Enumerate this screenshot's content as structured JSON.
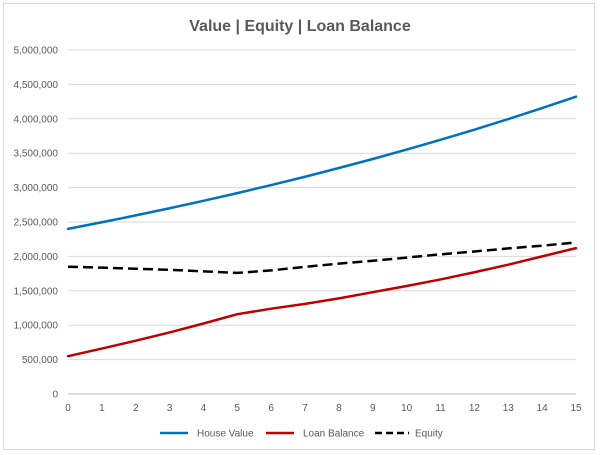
{
  "chart_data": {
    "type": "line",
    "title": "Value | Equity | Loan Balance",
    "xlabel": "",
    "ylabel": "",
    "x": [
      0,
      1,
      2,
      3,
      4,
      5,
      6,
      7,
      8,
      9,
      10,
      11,
      12,
      13,
      14,
      15
    ],
    "x_tick_labels": [
      "0",
      "1",
      "2",
      "3",
      "4",
      "5",
      "6",
      "7",
      "8",
      "9",
      "10",
      "11",
      "12",
      "13",
      "14",
      "15"
    ],
    "ylim": [
      0,
      5000000
    ],
    "y_ticks": [
      0,
      500000,
      1000000,
      1500000,
      2000000,
      2500000,
      3000000,
      3500000,
      4000000,
      4500000,
      5000000
    ],
    "y_tick_labels": [
      "0",
      "500,000",
      "1,000,000",
      "1,500,000",
      "2,000,000",
      "2,500,000",
      "3,000,000",
      "3,500,000",
      "4,000,000",
      "4,500,000",
      "5,000,000"
    ],
    "grid": true,
    "legend_position": "bottom",
    "series": [
      {
        "name": "House Value",
        "color": "#0070c0",
        "style": "solid",
        "values": [
          2400000,
          2496000,
          2596000,
          2700000,
          2808000,
          2920000,
          3037000,
          3158000,
          3285000,
          3416000,
          3553000,
          3695000,
          3842000,
          3996000,
          4156000,
          4322000
        ]
      },
      {
        "name": "Loan Balance",
        "color": "#c00000",
        "style": "solid",
        "values": [
          550000,
          660000,
          775000,
          895000,
          1025000,
          1160000,
          1240000,
          1310000,
          1390000,
          1480000,
          1570000,
          1665000,
          1770000,
          1880000,
          2000000,
          2120000
        ]
      },
      {
        "name": "Equity",
        "color": "#000000",
        "style": "dashed",
        "values": [
          1850000,
          1836000,
          1821000,
          1805000,
          1783000,
          1760000,
          1797000,
          1848000,
          1895000,
          1936000,
          1983000,
          2030000,
          2072000,
          2116000,
          2156000,
          2202000
        ]
      }
    ]
  }
}
